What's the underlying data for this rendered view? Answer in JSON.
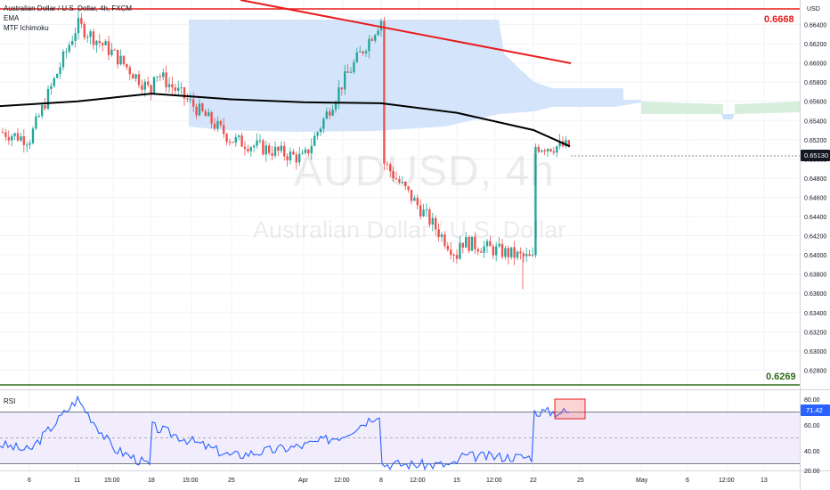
{
  "header": {
    "symbol_line": "Australian Dollar / U.S. Dollar, 4h, FXCM",
    "indicators": [
      "EMA",
      "MTF Ichimoku"
    ],
    "currency": "USD",
    "watermark_symbol": "AUDUSD, 4h",
    "watermark_name": "Australian Dollar / U.S. Dollar"
  },
  "colors": {
    "up": "#26a69a",
    "down": "#ef5350",
    "ema": "#000000",
    "cloud": "#cfe2fb",
    "cloud_green": "#d7eedc",
    "resistance": "#e81c1c",
    "support": "#2e6b1a",
    "rsi": "#2962ff",
    "rsi_band": "#ede6fb"
  },
  "chart_data": [
    {
      "type": "candlestick",
      "title": "Australian Dollar / U.S. Dollar, 4h, FXCM",
      "ylabel": "USD",
      "ylim": [
        0.6258,
        0.67
      ],
      "y_ticks": [
        "0.66400",
        "0.66200",
        "0.66000",
        "0.65800",
        "0.65600",
        "0.65400",
        "0.65200",
        "0.65000",
        "0.64800",
        "0.64600",
        "0.64400",
        "0.64200",
        "0.64000",
        "0.63800",
        "0.63600",
        "0.63400",
        "0.63200",
        "0.63000",
        "0.62800"
      ],
      "x_ticks": [
        "6",
        "11",
        "15:00",
        "18",
        "15:00",
        "25",
        "Apr",
        "12:00",
        "8",
        "12:00",
        "15",
        "12:00",
        "22",
        "25",
        "May",
        "6",
        "12:00",
        "13"
      ],
      "price_checkpoints": {
        "x": [
          "6",
          "11",
          "15:00",
          "18",
          "15:00",
          "25",
          "Apr",
          "12:00",
          "8",
          "12:00",
          "15",
          "12:00",
          "22",
          "25"
        ],
        "y": [
          0.652,
          0.664,
          0.661,
          0.657,
          0.663,
          0.652,
          0.65,
          0.658,
          0.6645,
          0.655,
          0.64,
          0.6445,
          0.6395,
          0.6513
        ]
      },
      "series": [
        {
          "name": "EMA",
          "x": [
            "6",
            "11",
            "18",
            "25",
            "Apr",
            "8",
            "15",
            "22",
            "25"
          ],
          "values": [
            0.6555,
            0.656,
            0.6568,
            0.6562,
            0.6559,
            0.6558,
            0.6548,
            0.653,
            0.6513
          ]
        }
      ],
      "levels": [
        {
          "label": "0.6668",
          "value": 0.6668
        },
        {
          "label": "0.6269",
          "value": 0.6269
        }
      ],
      "current_price": {
        "label": "0.65130",
        "value": 0.6513
      },
      "trendline": {
        "from": {
          "x": "25",
          "y": 0.6703
        },
        "to": {
          "x": "22",
          "y": 0.6613
        }
      },
      "annotations": [
        "MTF Ichimoku cloud"
      ]
    },
    {
      "type": "line",
      "title": "RSI",
      "ylim": [
        20,
        85
      ],
      "y_ticks": [
        "80.00",
        "60.00",
        "40.00",
        "20.00"
      ],
      "bands": [
        70,
        50,
        30
      ],
      "series": [
        {
          "name": "RSI",
          "x": [
            "6",
            "11",
            "15:00",
            "18",
            "15:00",
            "25",
            "Apr",
            "12:00",
            "8",
            "12:00",
            "15",
            "12:00",
            "22",
            "25"
          ],
          "values": [
            40,
            80,
            42,
            28,
            70,
            36,
            44,
            52,
            70,
            30,
            29,
            37,
            35,
            71.42
          ]
        }
      ],
      "current_value": {
        "label": "71.42",
        "value": 71.42
      }
    }
  ]
}
